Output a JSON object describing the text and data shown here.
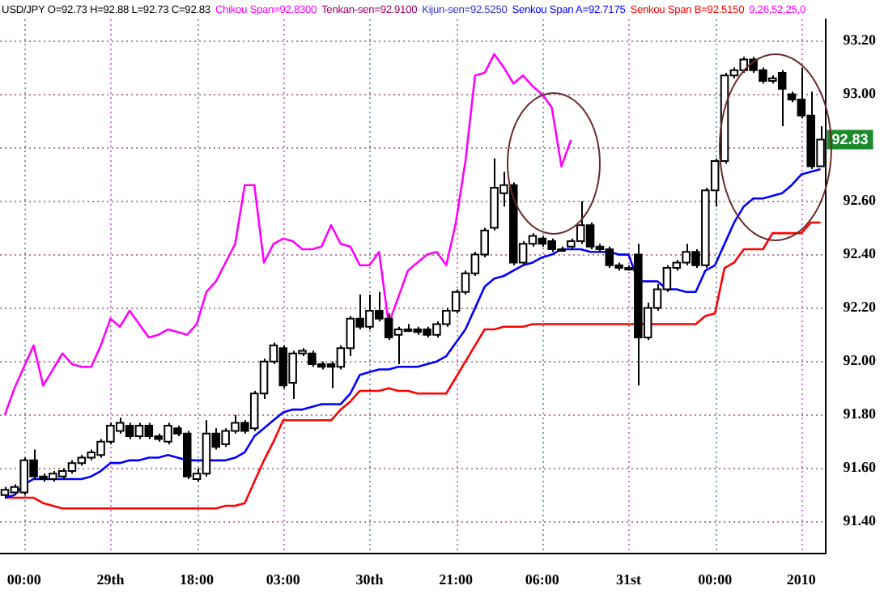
{
  "chart_data": {
    "type": "candlestick",
    "title": "USD/JPY O=92.73 H=92.88 L=92.73 C=92.83",
    "categories": [
      null,
      null,
      "00:00",
      null,
      null,
      null,
      null,
      null,
      null,
      null,
      null,
      "29th",
      null,
      null,
      null,
      null,
      null,
      null,
      null,
      null,
      "18:00",
      null,
      null,
      null,
      null,
      null,
      null,
      null,
      null,
      "03:00",
      null,
      null,
      null,
      null,
      null,
      null,
      null,
      null,
      "30th",
      null,
      null,
      null,
      null,
      null,
      null,
      null,
      null,
      "21:00",
      null,
      null,
      null,
      null,
      null,
      null,
      null,
      null,
      "06:00",
      null,
      null,
      null,
      null,
      null,
      null,
      null,
      null,
      "31st",
      null,
      null,
      null,
      null,
      null,
      null,
      null,
      null,
      "00:00",
      null,
      null,
      null,
      null,
      null,
      null,
      null,
      null,
      "2010",
      null,
      null
    ],
    "ohlc": [
      [
        91.5,
        91.53,
        91.49,
        91.52
      ],
      [
        91.51,
        91.54,
        91.5,
        91.53
      ],
      [
        91.51,
        91.64,
        91.5,
        91.63
      ],
      [
        91.63,
        91.67,
        91.56,
        91.57
      ],
      [
        91.57,
        91.58,
        91.55,
        91.56
      ],
      [
        91.56,
        91.59,
        91.55,
        91.58
      ],
      [
        91.57,
        91.6,
        91.56,
        91.59
      ],
      [
        91.59,
        91.63,
        91.58,
        91.62
      ],
      [
        91.62,
        91.65,
        91.61,
        91.64
      ],
      [
        91.64,
        91.67,
        91.63,
        91.66
      ],
      [
        91.65,
        91.71,
        91.64,
        91.7
      ],
      [
        91.7,
        91.77,
        91.69,
        91.76
      ],
      [
        91.74,
        91.79,
        91.73,
        91.77
      ],
      [
        91.76,
        91.77,
        91.71,
        91.72
      ],
      [
        91.72,
        91.77,
        91.71,
        91.76
      ],
      [
        91.76,
        91.77,
        91.71,
        91.72
      ],
      [
        91.72,
        91.73,
        91.7,
        91.71
      ],
      [
        91.7,
        91.77,
        91.69,
        91.76
      ],
      [
        91.75,
        91.76,
        91.72,
        91.73
      ],
      [
        91.73,
        91.74,
        91.56,
        91.57
      ],
      [
        91.56,
        91.6,
        91.55,
        91.58
      ],
      [
        91.58,
        91.78,
        91.57,
        91.73
      ],
      [
        91.73,
        91.75,
        91.67,
        91.68
      ],
      [
        91.69,
        91.75,
        91.68,
        91.74
      ],
      [
        91.74,
        91.8,
        91.73,
        91.77
      ],
      [
        91.77,
        91.78,
        91.73,
        91.74
      ],
      [
        91.75,
        91.89,
        91.74,
        91.88
      ],
      [
        91.88,
        92.01,
        91.86,
        92.0
      ],
      [
        92.0,
        92.07,
        91.99,
        92.06
      ],
      [
        92.05,
        92.06,
        91.9,
        91.91
      ],
      [
        91.92,
        92.04,
        91.86,
        92.03
      ],
      [
        92.03,
        92.05,
        92.02,
        92.04
      ],
      [
        92.03,
        92.04,
        91.98,
        91.99
      ],
      [
        91.99,
        92.0,
        91.97,
        91.98
      ],
      [
        91.99,
        92.0,
        91.9,
        91.98
      ],
      [
        91.98,
        92.06,
        91.97,
        92.05
      ],
      [
        92.05,
        92.17,
        92.02,
        92.16
      ],
      [
        92.16,
        92.25,
        92.12,
        92.13
      ],
      [
        92.13,
        92.25,
        92.12,
        92.19
      ],
      [
        92.19,
        92.26,
        92.15,
        92.16
      ],
      [
        92.16,
        92.18,
        92.08,
        92.09
      ],
      [
        92.1,
        92.13,
        91.99,
        92.12
      ],
      [
        92.12,
        92.14,
        92.11,
        92.12
      ],
      [
        92.12,
        92.13,
        92.1,
        92.11
      ],
      [
        92.12,
        92.13,
        92.09,
        92.1
      ],
      [
        92.1,
        92.15,
        92.09,
        92.14
      ],
      [
        92.14,
        92.2,
        92.13,
        92.19
      ],
      [
        92.19,
        92.27,
        92.18,
        92.26
      ],
      [
        92.26,
        92.34,
        92.25,
        92.33
      ],
      [
        92.33,
        92.41,
        92.32,
        92.4
      ],
      [
        92.4,
        92.5,
        92.39,
        92.49
      ],
      [
        92.5,
        92.76,
        92.49,
        92.65
      ],
      [
        92.63,
        92.71,
        92.58,
        92.66
      ],
      [
        92.66,
        92.67,
        92.36,
        92.37
      ],
      [
        92.37,
        92.45,
        92.36,
        92.44
      ],
      [
        92.44,
        92.48,
        92.43,
        92.47
      ],
      [
        92.46,
        92.47,
        92.43,
        92.44
      ],
      [
        92.45,
        92.46,
        92.41,
        92.42
      ],
      [
        92.42,
        92.43,
        92.41,
        92.42
      ],
      [
        92.43,
        92.46,
        92.42,
        92.45
      ],
      [
        92.45,
        92.6,
        92.44,
        92.51
      ],
      [
        92.51,
        92.52,
        92.42,
        92.43
      ],
      [
        92.43,
        92.44,
        92.41,
        92.42
      ],
      [
        92.42,
        92.43,
        92.35,
        92.36
      ],
      [
        92.36,
        92.37,
        92.34,
        92.35
      ],
      [
        92.35,
        92.36,
        92.34,
        92.35
      ],
      [
        92.4,
        92.44,
        91.91,
        92.09
      ],
      [
        92.09,
        92.22,
        92.08,
        92.2
      ],
      [
        92.2,
        92.29,
        92.19,
        92.27
      ],
      [
        92.27,
        92.36,
        92.26,
        92.35
      ],
      [
        92.35,
        92.38,
        92.34,
        92.37
      ],
      [
        92.37,
        92.44,
        92.36,
        92.41
      ],
      [
        92.41,
        92.42,
        92.35,
        92.36
      ],
      [
        92.36,
        92.65,
        92.35,
        92.64
      ],
      [
        92.64,
        92.76,
        92.58,
        92.75
      ],
      [
        92.75,
        93.08,
        92.74,
        93.07
      ],
      [
        93.07,
        93.1,
        93.06,
        93.09
      ],
      [
        93.09,
        93.14,
        93.08,
        93.13
      ],
      [
        93.13,
        93.14,
        93.08,
        93.09
      ],
      [
        93.09,
        93.1,
        93.04,
        93.05
      ],
      [
        93.05,
        93.07,
        93.04,
        93.06
      ],
      [
        93.08,
        93.09,
        92.88,
        93.02
      ],
      [
        93.0,
        93.01,
        92.97,
        92.98
      ],
      [
        92.98,
        93.1,
        92.91,
        92.92
      ],
      [
        92.92,
        93.01,
        92.72,
        92.73
      ],
      [
        92.73,
        92.88,
        92.73,
        92.83
      ]
    ],
    "series": [
      {
        "name": "Chikou Span=92.8300",
        "type": "line",
        "color": "#ff00ff",
        "values": [
          91.8,
          91.9,
          91.98,
          92.06,
          91.91,
          91.97,
          92.03,
          91.99,
          91.98,
          91.98,
          92.06,
          92.16,
          92.13,
          92.19,
          92.14,
          92.09,
          92.1,
          92.12,
          92.11,
          92.1,
          92.14,
          92.26,
          92.3,
          92.37,
          92.44,
          92.66,
          92.66,
          92.37,
          92.44,
          92.46,
          92.45,
          92.42,
          92.42,
          92.43,
          92.51,
          92.44,
          92.43,
          92.36,
          92.36,
          92.41,
          92.14,
          92.24,
          92.34,
          92.37,
          92.4,
          92.41,
          92.36,
          92.52,
          92.75,
          93.07,
          93.08,
          93.15,
          93.1,
          93.04,
          93.07,
          93.03,
          93.0,
          92.95,
          92.73,
          92.83,
          null,
          null,
          null,
          null,
          null,
          null,
          null,
          null,
          null,
          null,
          null,
          null,
          null,
          null,
          null,
          null,
          null,
          null,
          null,
          null,
          null,
          null,
          null,
          null,
          null,
          null
        ]
      },
      {
        "name": "Senkou Span A=92.7175",
        "type": "line",
        "color": "#0000ff",
        "values": [
          91.49,
          91.5,
          91.54,
          91.56,
          91.56,
          91.56,
          91.56,
          91.56,
          91.56,
          91.57,
          91.59,
          91.62,
          91.62,
          91.63,
          91.63,
          91.64,
          91.64,
          91.65,
          91.64,
          91.63,
          91.63,
          91.63,
          91.63,
          91.63,
          91.64,
          91.66,
          91.72,
          91.75,
          91.78,
          91.81,
          91.82,
          91.82,
          91.83,
          91.84,
          91.84,
          91.84,
          91.88,
          91.95,
          91.96,
          91.97,
          91.97,
          91.98,
          91.98,
          91.98,
          91.99,
          92.0,
          92.02,
          92.07,
          92.12,
          92.2,
          92.28,
          92.31,
          92.32,
          92.34,
          92.36,
          92.37,
          92.39,
          92.4,
          92.42,
          92.42,
          92.42,
          92.41,
          92.41,
          92.41,
          92.4,
          92.4,
          92.3,
          92.3,
          92.3,
          92.27,
          92.27,
          92.26,
          92.26,
          92.34,
          92.36,
          92.44,
          92.52,
          92.58,
          92.61,
          92.61,
          92.62,
          92.63,
          92.66,
          92.7,
          92.71,
          92.72
        ]
      },
      {
        "name": "Senkou Span B=92.5150",
        "type": "line",
        "color": "#ff0000",
        "values": [
          91.49,
          91.49,
          91.49,
          91.49,
          91.47,
          91.46,
          91.45,
          91.45,
          91.45,
          91.45,
          91.45,
          91.45,
          91.45,
          91.45,
          91.45,
          91.45,
          91.45,
          91.45,
          91.45,
          91.45,
          91.45,
          91.45,
          91.45,
          91.46,
          91.46,
          91.47,
          91.55,
          91.63,
          91.7,
          91.78,
          91.78,
          91.78,
          91.78,
          91.78,
          91.78,
          91.82,
          91.85,
          91.89,
          91.89,
          91.89,
          91.9,
          91.89,
          91.89,
          91.88,
          91.88,
          91.88,
          91.88,
          91.94,
          92.0,
          92.06,
          92.12,
          92.12,
          92.13,
          92.13,
          92.13,
          92.14,
          92.14,
          92.14,
          92.14,
          92.14,
          92.14,
          92.14,
          92.14,
          92.14,
          92.14,
          92.14,
          92.14,
          92.14,
          92.14,
          92.14,
          92.14,
          92.14,
          92.14,
          92.17,
          92.18,
          92.35,
          92.37,
          92.42,
          92.42,
          92.42,
          92.48,
          92.48,
          92.48,
          92.48,
          92.52,
          92.52
        ]
      }
    ],
    "annotations": [
      "Tenkan-sen=92.9100",
      "Kijun-sen=92.5250",
      "9,26,52,25,0",
      {
        "text": "92.83",
        "y": 92.83
      }
    ],
    "ylim": [
      91.28,
      93.28
    ],
    "yticks": [
      {
        "value": 91.4,
        "label": "91.40"
      },
      {
        "value": 91.6,
        "label": "91.60"
      },
      {
        "value": 91.8,
        "label": "91.80"
      },
      {
        "value": 92.0,
        "label": "92.00"
      },
      {
        "value": 92.2,
        "label": "92.20"
      },
      {
        "value": 92.4,
        "label": "92.40"
      },
      {
        "value": 92.6,
        "label": "92.60"
      },
      {
        "value": 92.8,
        "label": null
      },
      {
        "value": 93.0,
        "label": "93.00"
      },
      {
        "value": 93.2,
        "label": "93.20"
      }
    ],
    "grid": true,
    "legend": "top",
    "marker": "none"
  }
}
